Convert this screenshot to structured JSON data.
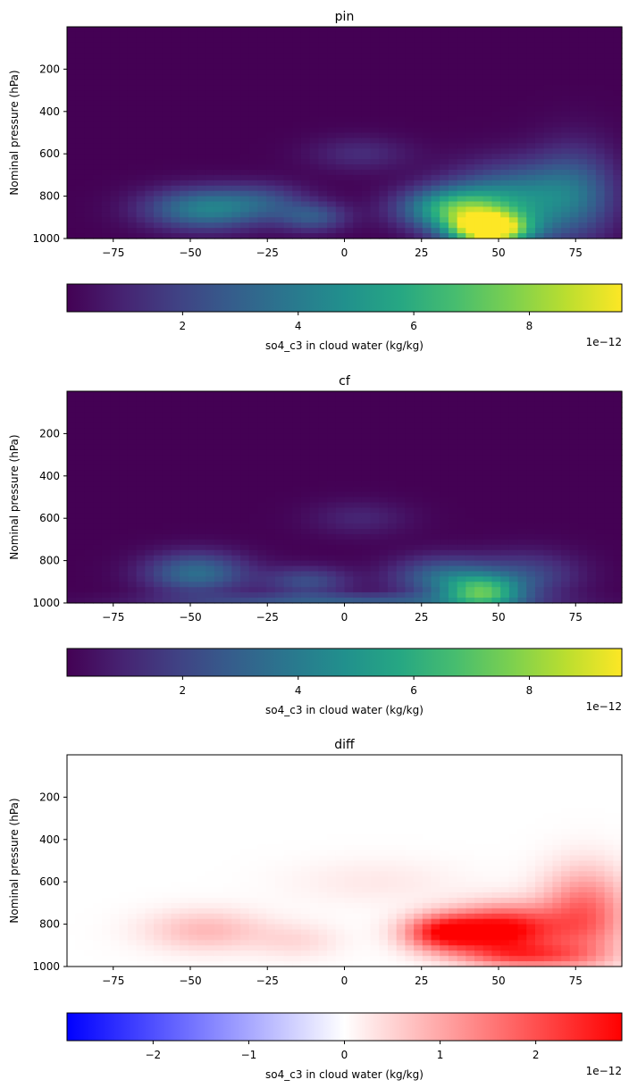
{
  "chart_data": [
    {
      "type": "heatmap",
      "title": "pin",
      "ylabel": "Nominal pressure (hPa)",
      "xlim": [
        -90,
        90
      ],
      "ylim": [
        1000,
        0
      ],
      "xticks": [
        "−75",
        "−50",
        "−25",
        "0",
        "25",
        "50",
        "75"
      ],
      "xtick_values": [
        -75,
        -50,
        -25,
        0,
        25,
        50,
        75
      ],
      "yticks": [
        "200",
        "400",
        "600",
        "800",
        "1000"
      ],
      "ytick_values": [
        200,
        400,
        600,
        800,
        1000
      ],
      "colormap": "viridis",
      "colorbar": {
        "label": "so4_c3 in cloud water (kg/kg)",
        "range": [
          0.0,
          9.6
        ],
        "ticks": [
          "2",
          "4",
          "6",
          "8"
        ],
        "tick_values": [
          2,
          4,
          6,
          8
        ],
        "offset": "1e−12"
      },
      "features": [
        {
          "lat": 47,
          "p": 960,
          "value": 9.5,
          "lat_spread": 9,
          "p_spread": 55
        },
        {
          "lat": 35,
          "p": 860,
          "value": 5.5,
          "lat_spread": 12,
          "p_spread": 70
        },
        {
          "lat": 55,
          "p": 820,
          "value": 4.0,
          "lat_spread": 15,
          "p_spread": 120
        },
        {
          "lat": 75,
          "p": 780,
          "value": 2.5,
          "lat_spread": 10,
          "p_spread": 160
        },
        {
          "lat": -45,
          "p": 860,
          "value": 4.2,
          "lat_spread": 14,
          "p_spread": 70
        },
        {
          "lat": -10,
          "p": 900,
          "value": 2.5,
          "lat_spread": 8,
          "p_spread": 50
        },
        {
          "lat": 5,
          "p": 600,
          "value": 1.2,
          "lat_spread": 12,
          "p_spread": 60
        },
        {
          "lat": -25,
          "p": 820,
          "value": 1.5,
          "lat_spread": 10,
          "p_spread": 60
        }
      ]
    },
    {
      "type": "heatmap",
      "title": "cf",
      "ylabel": "Nominal pressure (hPa)",
      "xlim": [
        -90,
        90
      ],
      "ylim": [
        1000,
        0
      ],
      "xticks": [
        "−75",
        "−50",
        "−25",
        "0",
        "25",
        "50",
        "75"
      ],
      "xtick_values": [
        -75,
        -50,
        -25,
        0,
        25,
        50,
        75
      ],
      "yticks": [
        "200",
        "400",
        "600",
        "800",
        "1000"
      ],
      "ytick_values": [
        200,
        400,
        600,
        800,
        1000
      ],
      "colormap": "viridis",
      "colorbar": {
        "label": "so4_c3 in cloud water (kg/kg)",
        "range": [
          0.0,
          9.6
        ],
        "ticks": [
          "2",
          "4",
          "6",
          "8"
        ],
        "tick_values": [
          2,
          4,
          6,
          8
        ],
        "offset": "1e−12"
      },
      "features": [
        {
          "lat": 45,
          "p": 950,
          "value": 5.5,
          "lat_spread": 9,
          "p_spread": 55
        },
        {
          "lat": 32,
          "p": 880,
          "value": 3.2,
          "lat_spread": 12,
          "p_spread": 70
        },
        {
          "lat": 60,
          "p": 870,
          "value": 2.0,
          "lat_spread": 12,
          "p_spread": 80
        },
        {
          "lat": -48,
          "p": 860,
          "value": 3.5,
          "lat_spread": 12,
          "p_spread": 70
        },
        {
          "lat": -12,
          "p": 900,
          "value": 2.3,
          "lat_spread": 10,
          "p_spread": 50
        },
        {
          "lat": 5,
          "p": 600,
          "value": 1.0,
          "lat_spread": 12,
          "p_spread": 60
        },
        {
          "lat": 0,
          "p": 985,
          "value": 2.5,
          "lat_spread": 40,
          "p_spread": 20
        }
      ]
    },
    {
      "type": "heatmap",
      "title": "diff",
      "ylabel": "Nominal pressure (hPa)",
      "xlim": [
        -90,
        90
      ],
      "ylim": [
        1000,
        0
      ],
      "xticks": [
        "−75",
        "−50",
        "−25",
        "0",
        "25",
        "50",
        "75"
      ],
      "xtick_values": [
        -75,
        -50,
        -25,
        0,
        25,
        50,
        75
      ],
      "yticks": [
        "200",
        "400",
        "600",
        "800",
        "1000"
      ],
      "ytick_values": [
        200,
        400,
        600,
        800,
        1000
      ],
      "colormap": "bwr",
      "colorbar": {
        "label": "so4_c3 in cloud water (kg/kg)",
        "range": [
          -2.9,
          2.9
        ],
        "ticks": [
          "−2",
          "−1",
          "0",
          "1",
          "2"
        ],
        "tick_values": [
          -2,
          -1,
          0,
          1,
          2
        ],
        "offset": "1e−12"
      },
      "features": [
        {
          "lat": 52,
          "p": 830,
          "value": 2.9,
          "lat_spread": 12,
          "p_spread": 80
        },
        {
          "lat": 32,
          "p": 840,
          "value": 2.5,
          "lat_spread": 9,
          "p_spread": 60
        },
        {
          "lat": 78,
          "p": 760,
          "value": 1.8,
          "lat_spread": 10,
          "p_spread": 150
        },
        {
          "lat": 60,
          "p": 950,
          "value": 1.5,
          "lat_spread": 15,
          "p_spread": 40
        },
        {
          "lat": -45,
          "p": 830,
          "value": 0.8,
          "lat_spread": 14,
          "p_spread": 70
        },
        {
          "lat": -15,
          "p": 880,
          "value": 0.4,
          "lat_spread": 10,
          "p_spread": 60
        },
        {
          "lat": 10,
          "p": 600,
          "value": 0.25,
          "lat_spread": 20,
          "p_spread": 80
        }
      ]
    }
  ]
}
